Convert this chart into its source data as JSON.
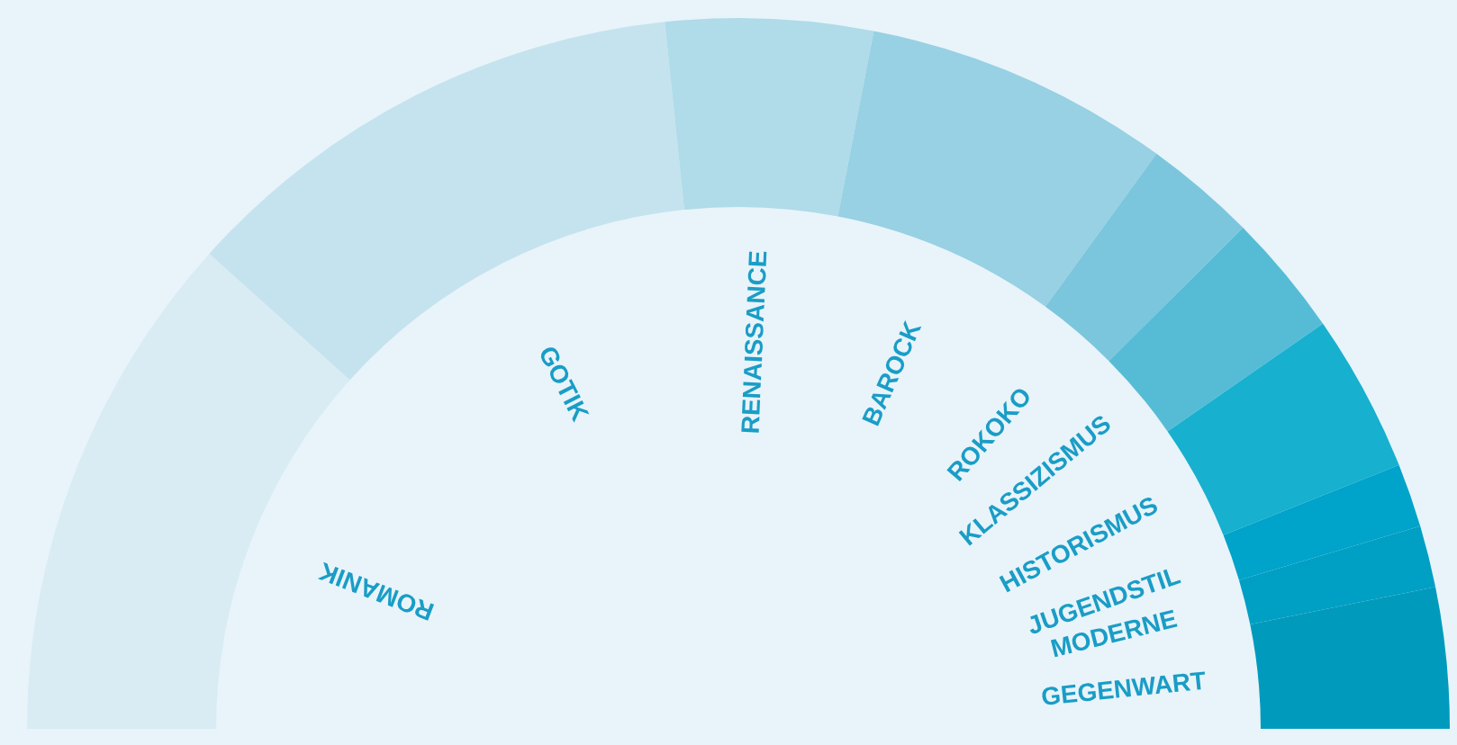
{
  "chart_data": {
    "type": "donut",
    "categories": [
      "ROMANIK",
      "GOTIK",
      "RENAISSANCE",
      "BAROCK",
      "ROKOKO",
      "KLASSIZISMUS",
      "HISTORISMUS",
      "JUGENDSTIL",
      "MODERNE",
      "GEGENWART"
    ],
    "values": [
      23.3,
      23.4,
      9.4,
      13.9,
      5.1,
      5.6,
      7.2,
      2.9,
      2.8,
      6.4
    ],
    "colors": [
      "#d9ecf3",
      "#c5e3ee",
      "#b0dbe8",
      "#97d1e3",
      "#7cc6dd",
      "#56bcd6",
      "#17b0cf",
      "#00a3c9",
      "#009fc4",
      "#009abd"
    ]
  }
}
